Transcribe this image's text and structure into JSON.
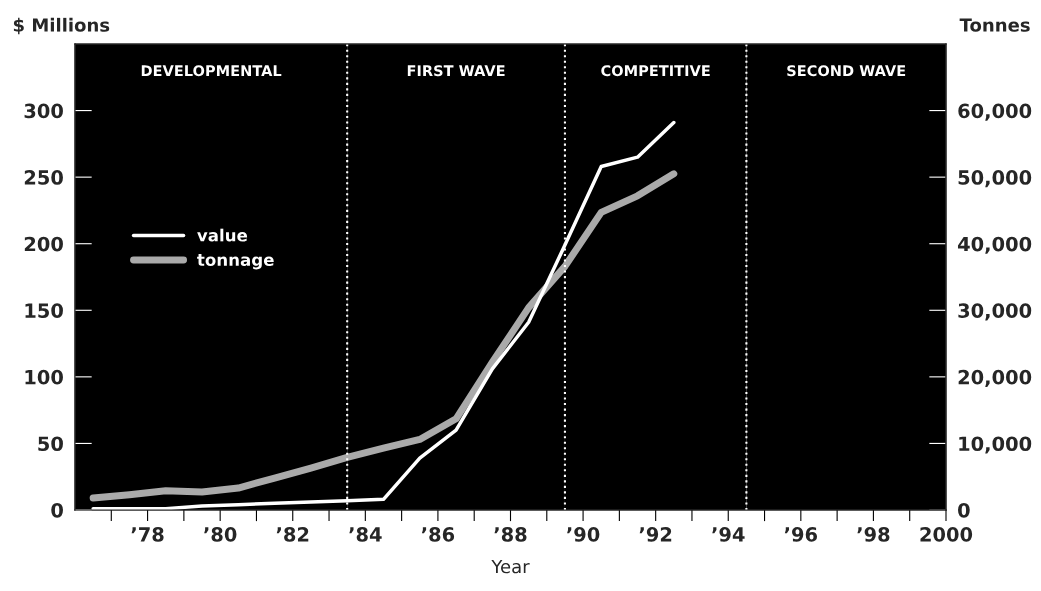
{
  "chart_data": {
    "type": "line",
    "xlabel": "Year",
    "ylabel": "$ Millions",
    "y2label": "Tonnes",
    "xlim": [
      1976,
      2000
    ],
    "ylim": [
      0,
      350
    ],
    "y2lim": [
      0,
      70000
    ],
    "xticks": [
      {
        "value": 1977,
        "label": null
      },
      {
        "value": 1978,
        "label": "’78"
      },
      {
        "value": 1979,
        "label": null
      },
      {
        "value": 1980,
        "label": "’80"
      },
      {
        "value": 1981,
        "label": null
      },
      {
        "value": 1982,
        "label": "’82"
      },
      {
        "value": 1983,
        "label": null
      },
      {
        "value": 1984,
        "label": "’84"
      },
      {
        "value": 1985,
        "label": null
      },
      {
        "value": 1986,
        "label": "’86"
      },
      {
        "value": 1987,
        "label": null
      },
      {
        "value": 1988,
        "label": "’88"
      },
      {
        "value": 1989,
        "label": null
      },
      {
        "value": 1990,
        "label": "’90"
      },
      {
        "value": 1991,
        "label": null
      },
      {
        "value": 1992,
        "label": "’92"
      },
      {
        "value": 1993,
        "label": null
      },
      {
        "value": 1994,
        "label": "’94"
      },
      {
        "value": 1995,
        "label": null
      },
      {
        "value": 1996,
        "label": "’96"
      },
      {
        "value": 1997,
        "label": null
      },
      {
        "value": 1998,
        "label": "’98"
      },
      {
        "value": 1999,
        "label": null
      },
      {
        "value": 2000,
        "label": "2000"
      }
    ],
    "yticks": [
      0,
      50,
      100,
      150,
      200,
      250,
      300
    ],
    "y2ticks": [
      {
        "value": 0,
        "label": "0"
      },
      {
        "value": 10000,
        "label": "10,000"
      },
      {
        "value": 20000,
        "label": "20,000"
      },
      {
        "value": 30000,
        "label": "30,000"
      },
      {
        "value": 40000,
        "label": "40,000"
      },
      {
        "value": 50000,
        "label": "50,000"
      },
      {
        "value": 60000,
        "label": "60,000"
      }
    ],
    "x": [
      1976.5,
      1977.5,
      1978.5,
      1979.5,
      1980.5,
      1981.5,
      1982.5,
      1983.5,
      1984.5,
      1985.5,
      1986.5,
      1987.5,
      1988.5,
      1989.5,
      1990.5,
      1991.5,
      1992.5
    ],
    "series": [
      {
        "name": "value",
        "color": "#ffffff",
        "values": [
          1,
          1,
          1,
          3,
          4,
          5,
          6,
          7,
          8,
          39,
          60,
          106,
          141,
          199,
          258,
          265,
          291
        ]
      },
      {
        "name": "tonnage",
        "color": "#aaaaaa",
        "axis": "y2",
        "values": [
          1800,
          2300,
          2900,
          2700,
          3300,
          4800,
          6300,
          7900,
          9300,
          10600,
          13700,
          22200,
          30400,
          36600,
          44700,
          47200,
          50500
        ]
      }
    ],
    "ref_lines": [
      {
        "axis": "x",
        "value": 1983.5,
        "color": "#ffffff",
        "line_style": "dotted"
      },
      {
        "axis": "x",
        "value": 1989.5,
        "color": "#ffffff",
        "line_style": "dotted"
      },
      {
        "axis": "x",
        "value": 1994.5,
        "color": "#ffffff",
        "line_style": "dotted"
      }
    ],
    "bands": [
      {
        "axis": "x",
        "from": 1976,
        "to": 1983.5,
        "label": "DEVELOPMENTAL",
        "color": "#000000"
      },
      {
        "axis": "x",
        "from": 1983.5,
        "to": 1989.5,
        "label": "FIRST WAVE",
        "color": "#000000"
      },
      {
        "axis": "x",
        "from": 1989.5,
        "to": 1994.5,
        "label": "COMPETITIVE",
        "color": "#000000"
      },
      {
        "axis": "x",
        "from": 1994.5,
        "to": 2000,
        "label": "SECOND WAVE",
        "color": "#000000"
      }
    ],
    "legend": "center left",
    "grid": false
  }
}
